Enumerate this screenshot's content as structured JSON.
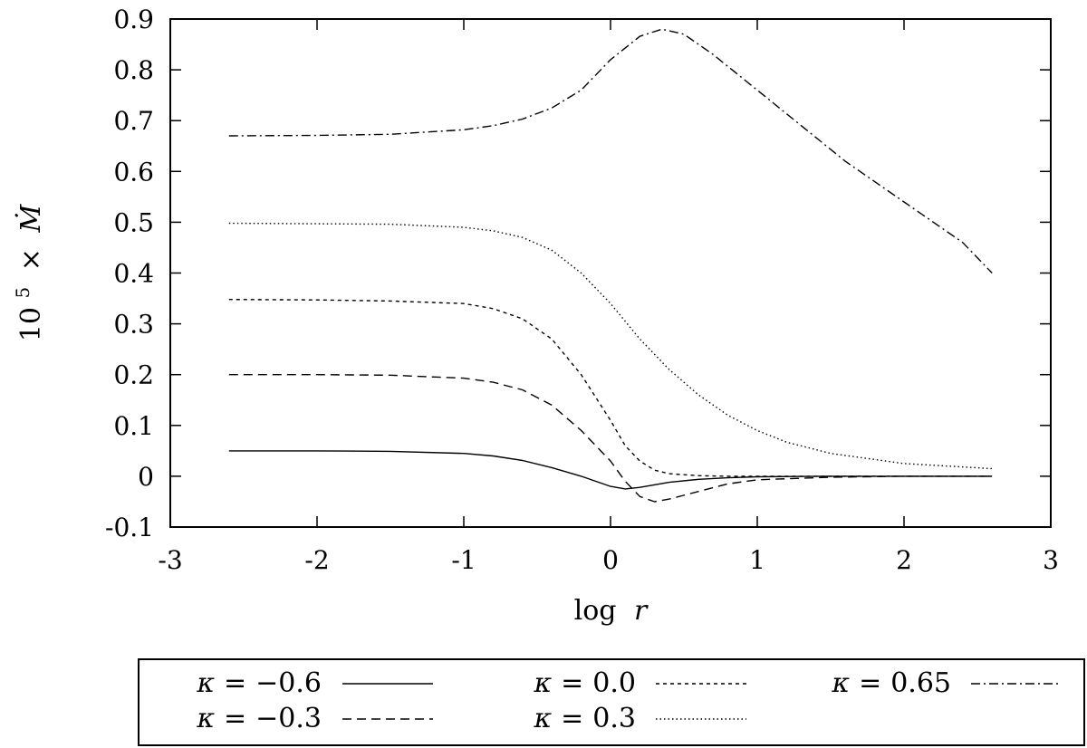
{
  "chart_data": {
    "type": "line",
    "xlabel": "log r",
    "ylabel": "10^5 × Ṁ",
    "xlabel_parts": {
      "prefix": "log",
      "var": "r"
    },
    "ylabel_parts": {
      "base": "10",
      "exp": "5",
      "times": "×",
      "var": "Ṁ"
    },
    "xlim": [
      -3,
      3
    ],
    "ylim": [
      -0.1,
      0.9
    ],
    "x_ticks": [
      -3,
      -2,
      -1,
      0,
      1,
      2,
      3
    ],
    "x_tick_labels": [
      "-3",
      "-2",
      "-1",
      "0",
      "1",
      "2",
      "3"
    ],
    "y_ticks": [
      -0.1,
      0,
      0.1,
      0.2,
      0.3,
      0.4,
      0.5,
      0.6,
      0.7,
      0.8,
      0.9
    ],
    "y_tick_labels": [
      "-0.1",
      "0",
      "0.1",
      "0.2",
      "0.3",
      "0.4",
      "0.5",
      "0.6",
      "0.7",
      "0.8",
      "0.9"
    ],
    "grid": false,
    "legend_position": "bottom-outside",
    "series": [
      {
        "name": "κ = −0.6",
        "dash": "solid",
        "x": [
          -2.6,
          -2.0,
          -1.5,
          -1.0,
          -0.8,
          -0.6,
          -0.4,
          -0.2,
          0.0,
          0.1,
          0.2,
          0.4,
          0.6,
          0.8,
          1.0,
          1.5,
          2.0,
          2.6
        ],
        "y": [
          0.05,
          0.05,
          0.049,
          0.045,
          0.04,
          0.031,
          0.017,
          0.0,
          -0.02,
          -0.025,
          -0.022,
          -0.012,
          -0.006,
          -0.003,
          -0.001,
          0.0,
          0.0,
          0.0
        ]
      },
      {
        "name": "κ = −0.3",
        "dash": "dashed",
        "x": [
          -2.6,
          -2.0,
          -1.5,
          -1.0,
          -0.8,
          -0.6,
          -0.4,
          -0.2,
          0.0,
          0.1,
          0.2,
          0.3,
          0.4,
          0.6,
          0.8,
          1.0,
          1.5,
          2.0,
          2.6
        ],
        "y": [
          0.2,
          0.2,
          0.199,
          0.193,
          0.185,
          0.17,
          0.14,
          0.09,
          0.03,
          -0.01,
          -0.04,
          -0.05,
          -0.045,
          -0.03,
          -0.015,
          -0.007,
          -0.002,
          0.0,
          0.0
        ]
      },
      {
        "name": "κ = 0.0",
        "dash": "short-dashed",
        "x": [
          -2.6,
          -2.0,
          -1.5,
          -1.0,
          -0.8,
          -0.6,
          -0.4,
          -0.2,
          0.0,
          0.1,
          0.2,
          0.3,
          0.4,
          0.6,
          0.8,
          1.0,
          1.5,
          2.0,
          2.6
        ],
        "y": [
          0.348,
          0.347,
          0.345,
          0.34,
          0.33,
          0.31,
          0.27,
          0.2,
          0.11,
          0.06,
          0.03,
          0.012,
          0.005,
          0.001,
          0.0,
          0.0,
          0.0,
          0.0,
          0.0
        ]
      },
      {
        "name": "κ = 0.3",
        "dash": "dotted",
        "x": [
          -2.6,
          -2.0,
          -1.5,
          -1.0,
          -0.8,
          -0.6,
          -0.4,
          -0.2,
          0.0,
          0.2,
          0.4,
          0.6,
          0.8,
          1.0,
          1.2,
          1.5,
          2.0,
          2.6
        ],
        "y": [
          0.498,
          0.497,
          0.496,
          0.49,
          0.483,
          0.47,
          0.445,
          0.4,
          0.34,
          0.27,
          0.21,
          0.16,
          0.12,
          0.09,
          0.067,
          0.045,
          0.025,
          0.015
        ]
      },
      {
        "name": "κ = 0.65",
        "dash": "dash-dot",
        "x": [
          -2.6,
          -2.0,
          -1.5,
          -1.0,
          -0.8,
          -0.6,
          -0.4,
          -0.2,
          0.0,
          0.2,
          0.35,
          0.5,
          0.7,
          1.0,
          1.3,
          1.6,
          2.0,
          2.4,
          2.6
        ],
        "y": [
          0.67,
          0.671,
          0.673,
          0.682,
          0.69,
          0.703,
          0.725,
          0.76,
          0.82,
          0.866,
          0.88,
          0.87,
          0.83,
          0.76,
          0.69,
          0.62,
          0.54,
          0.46,
          0.4
        ]
      }
    ],
    "legend": [
      {
        "kappa_sym": "κ",
        "eq": "=",
        "value": "−0.6",
        "series_index": 0
      },
      {
        "kappa_sym": "κ",
        "eq": "=",
        "value": "−0.3",
        "series_index": 1
      },
      {
        "kappa_sym": "κ",
        "eq": "=",
        "value": "0.0",
        "series_index": 2
      },
      {
        "kappa_sym": "κ",
        "eq": "=",
        "value": "0.3",
        "series_index": 3
      },
      {
        "kappa_sym": "κ",
        "eq": "=",
        "value": "0.65",
        "series_index": 4
      }
    ]
  }
}
